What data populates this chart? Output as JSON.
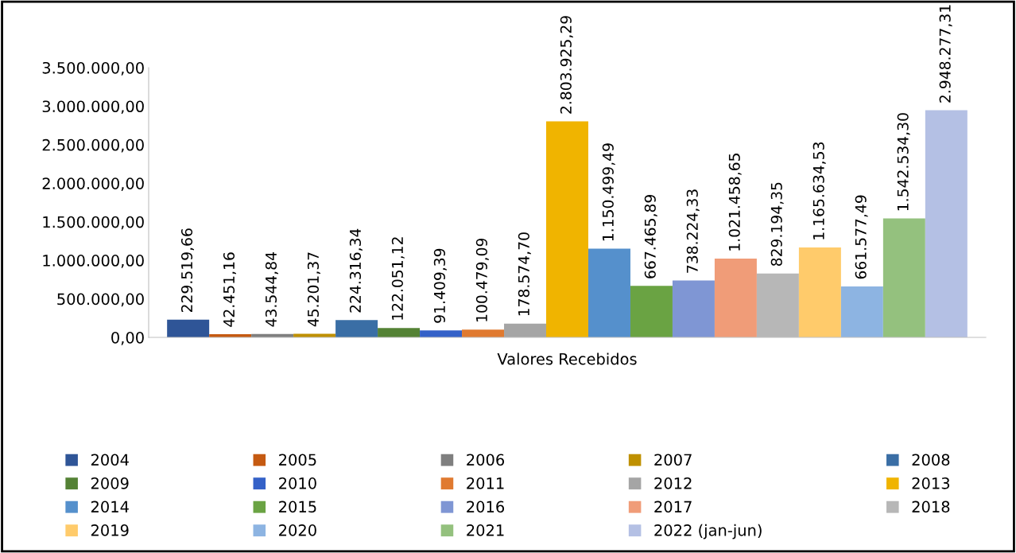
{
  "chart_data": {
    "type": "bar",
    "categories": [
      "Valores Recebidos"
    ],
    "series": [
      {
        "name": "2004",
        "color": "#2f5597",
        "values": [
          229519.66
        ],
        "value_labels": [
          "229.519,66"
        ]
      },
      {
        "name": "2005",
        "color": "#c55a11",
        "values": [
          42451.16
        ],
        "value_labels": [
          "42.451,16"
        ]
      },
      {
        "name": "2006",
        "color": "#7f7f7f",
        "values": [
          43544.84
        ],
        "value_labels": [
          "43.544,84"
        ]
      },
      {
        "name": "2007",
        "color": "#bf9000",
        "values": [
          45201.37
        ],
        "value_labels": [
          "45.201,37"
        ]
      },
      {
        "name": "2008",
        "color": "#3a6ea5",
        "values": [
          224316.34
        ],
        "value_labels": [
          "224.316,34"
        ]
      },
      {
        "name": "2009",
        "color": "#548235",
        "values": [
          122051.12
        ],
        "value_labels": [
          "122.051,12"
        ]
      },
      {
        "name": "2010",
        "color": "#3461c8",
        "values": [
          91409.39
        ],
        "value_labels": [
          "91.409,39"
        ]
      },
      {
        "name": "2011",
        "color": "#e07a30",
        "values": [
          100479.09
        ],
        "value_labels": [
          "100.479,09"
        ]
      },
      {
        "name": "2012",
        "color": "#a5a5a5",
        "values": [
          178574.7
        ],
        "value_labels": [
          "178.574,70"
        ]
      },
      {
        "name": "2013",
        "color": "#f0b400",
        "values": [
          2803925.29
        ],
        "value_labels": [
          "2.803.925,29"
        ]
      },
      {
        "name": "2014",
        "color": "#5590cc",
        "values": [
          1150499.49
        ],
        "value_labels": [
          "1.150.499,49"
        ]
      },
      {
        "name": "2015",
        "color": "#6aa343",
        "values": [
          667465.89
        ],
        "value_labels": [
          "667.465,89"
        ]
      },
      {
        "name": "2016",
        "color": "#7f96d4",
        "values": [
          738224.33
        ],
        "value_labels": [
          "738.224,33"
        ]
      },
      {
        "name": "2017",
        "color": "#f09c78",
        "values": [
          1021458.65
        ],
        "value_labels": [
          "1.021.458,65"
        ]
      },
      {
        "name": "2018",
        "color": "#b7b7b7",
        "values": [
          829194.35
        ],
        "value_labels": [
          "829.194,35"
        ]
      },
      {
        "name": "2019",
        "color": "#ffcb6b",
        "values": [
          1165634.53
        ],
        "value_labels": [
          "1.165.634,53"
        ]
      },
      {
        "name": "2020",
        "color": "#8db4e2",
        "values": [
          661577.49
        ],
        "value_labels": [
          "661.577,49"
        ]
      },
      {
        "name": "2021",
        "color": "#94c17e",
        "values": [
          1542534.3
        ],
        "value_labels": [
          "1.542.534,30"
        ]
      },
      {
        "name": "2022 (jan-jun)",
        "color": "#b4c0e4",
        "values": [
          2948277.31
        ],
        "value_labels": [
          "2.948.277,31"
        ]
      }
    ],
    "ylim": [
      0,
      3500000
    ],
    "yticks": [
      {
        "value": 0,
        "label": "0,00"
      },
      {
        "value": 500000,
        "label": "500.000,00"
      },
      {
        "value": 1000000,
        "label": "1.000.000,00"
      },
      {
        "value": 1500000,
        "label": "1.500.000,00"
      },
      {
        "value": 2000000,
        "label": "2.000.000,00"
      },
      {
        "value": 2500000,
        "label": "2.500.000,00"
      },
      {
        "value": 3000000,
        "label": "3.000.000,00"
      },
      {
        "value": 3500000,
        "label": "3.500.000,00"
      }
    ],
    "grid": false,
    "legend": "bottom"
  }
}
